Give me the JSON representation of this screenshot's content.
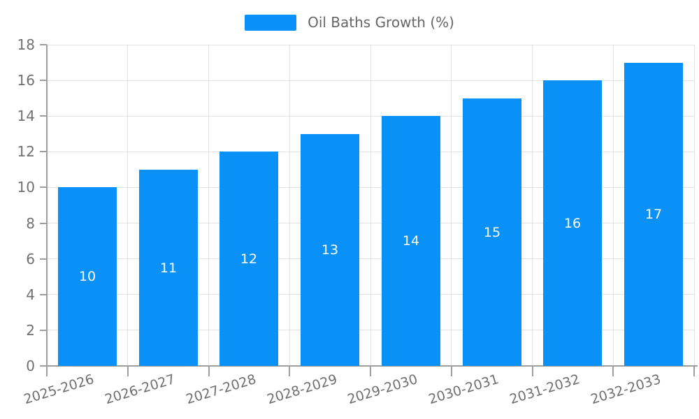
{
  "chart_data": {
    "type": "bar",
    "series_name": "Oil Baths Growth (%)",
    "categories": [
      "2025-2026",
      "2026-2027",
      "2027-2028",
      "2028-2029",
      "2029-2030",
      "2030-2031",
      "2031-2032",
      "2032-2033"
    ],
    "values": [
      10,
      11,
      12,
      13,
      14,
      15,
      16,
      17
    ],
    "data_labels": [
      "10",
      "11",
      "12",
      "13",
      "14",
      "15",
      "16",
      "17"
    ],
    "ylim": [
      0,
      18
    ],
    "ytick_step": 2,
    "ytick_labels": [
      "0",
      "2",
      "4",
      "6",
      "8",
      "10",
      "12",
      "14",
      "16",
      "18"
    ],
    "legend_position": "top-center",
    "grid": true,
    "colors": {
      "bar": "#0a91f7",
      "bar_label": "#ffffff",
      "axis": "#9e9e9e",
      "gridline": "#e3e3e3",
      "axis_text": "#707070",
      "legend_text": "#666666",
      "background": "#ffffff"
    }
  }
}
